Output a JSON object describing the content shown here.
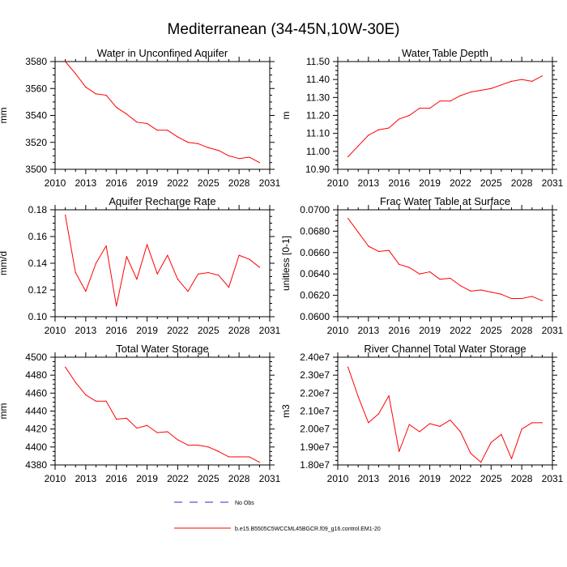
{
  "figure": {
    "title": "Mediterranean (34-45N,10W-30E)"
  },
  "colors": {
    "series": "#ff0000",
    "obs": "#2b2bd8",
    "axis": "#000000"
  },
  "legend": {
    "entries": [
      {
        "label": "No Obs",
        "style": "dashed",
        "color": "#2b2bd8"
      },
      {
        "label": "b.e15.B5505C5WCCML45BGCR.f09_g16.control.EM1-20",
        "style": "solid",
        "color": "#ff0000"
      }
    ]
  },
  "chart_data": [
    {
      "type": "line",
      "title": "Water in Unconfined Aquifer",
      "ylabel": "mm",
      "xlabel": "",
      "xlim": [
        2010,
        2031
      ],
      "ylim": [
        3500,
        3580
      ],
      "xticks": [
        "2010",
        "2013",
        "2016",
        "2019",
        "2022",
        "2025",
        "2028",
        "2031"
      ],
      "yticks": [
        "3500",
        "3520",
        "3540",
        "3560",
        "3580"
      ],
      "x": [
        2011,
        2012,
        2013,
        2014,
        2015,
        2016,
        2017,
        2018,
        2019,
        2020,
        2021,
        2022,
        2023,
        2024,
        2025,
        2026,
        2027,
        2028,
        2029,
        2030
      ],
      "series": [
        {
          "name": "b.e15.B5505C5WCCML45BGCR.f09_g16.control.EM1-20",
          "values": [
            3580,
            3571,
            3561,
            3556,
            3555,
            3546,
            3541,
            3535,
            3534,
            3529,
            3529,
            3524,
            3520,
            3519,
            3516,
            3514,
            3510,
            3508,
            3509,
            3505
          ]
        }
      ]
    },
    {
      "type": "line",
      "title": "Water Table Depth",
      "ylabel": "m",
      "xlabel": "",
      "xlim": [
        2010,
        2031
      ],
      "ylim": [
        10.9,
        11.5
      ],
      "xticks": [
        "2010",
        "2013",
        "2016",
        "2019",
        "2022",
        "2025",
        "2028",
        "2031"
      ],
      "yticks": [
        "10.90",
        "11.00",
        "11.10",
        "11.20",
        "11.30",
        "11.40",
        "11.50"
      ],
      "x": [
        2011,
        2012,
        2013,
        2014,
        2015,
        2016,
        2017,
        2018,
        2019,
        2020,
        2021,
        2022,
        2023,
        2024,
        2025,
        2026,
        2027,
        2028,
        2029,
        2030
      ],
      "series": [
        {
          "name": "b.e15.B5505C5WCCML45BGCR.f09_g16.control.EM1-20",
          "values": [
            10.97,
            11.03,
            11.09,
            11.12,
            11.13,
            11.18,
            11.2,
            11.24,
            11.24,
            11.28,
            11.28,
            11.31,
            11.33,
            11.34,
            11.35,
            11.37,
            11.39,
            11.4,
            11.39,
            11.42
          ]
        }
      ]
    },
    {
      "type": "line",
      "title": "Aquifer Recharge Rate",
      "ylabel": "mm/d",
      "xlabel": "",
      "xlim": [
        2010,
        2031
      ],
      "ylim": [
        0.1,
        0.18
      ],
      "xticks": [
        "2010",
        "2013",
        "2016",
        "2019",
        "2022",
        "2025",
        "2028",
        "2031"
      ],
      "yticks": [
        "0.10",
        "0.12",
        "0.14",
        "0.16",
        "0.18"
      ],
      "x": [
        2011,
        2012,
        2013,
        2014,
        2015,
        2016,
        2017,
        2018,
        2019,
        2020,
        2021,
        2022,
        2023,
        2024,
        2025,
        2026,
        2027,
        2028,
        2029,
        2030
      ],
      "series": [
        {
          "name": "b.e15.B5505C5WCCML45BGCR.f09_g16.control.EM1-20",
          "values": [
            0.176,
            0.133,
            0.119,
            0.14,
            0.153,
            0.108,
            0.145,
            0.128,
            0.154,
            0.132,
            0.146,
            0.128,
            0.119,
            0.132,
            0.133,
            0.131,
            0.122,
            0.146,
            0.143,
            0.137
          ]
        }
      ]
    },
    {
      "type": "line",
      "title": "Frac Water Table at Surface",
      "ylabel": "unitless [0-1]",
      "xlabel": "",
      "xlim": [
        2010,
        2031
      ],
      "ylim": [
        0.06,
        0.07
      ],
      "xticks": [
        "2010",
        "2013",
        "2016",
        "2019",
        "2022",
        "2025",
        "2028",
        "2031"
      ],
      "yticks": [
        "0.0600",
        "0.0620",
        "0.0640",
        "0.0660",
        "0.0680",
        "0.0700"
      ],
      "x": [
        2011,
        2012,
        2013,
        2014,
        2015,
        2016,
        2017,
        2018,
        2019,
        2020,
        2021,
        2022,
        2023,
        2024,
        2025,
        2026,
        2027,
        2028,
        2029,
        2030
      ],
      "series": [
        {
          "name": "b.e15.B5505C5WCCML45BGCR.f09_g16.control.EM1-20",
          "values": [
            0.0692,
            0.0679,
            0.0666,
            0.0661,
            0.0662,
            0.0649,
            0.0646,
            0.064,
            0.0642,
            0.0635,
            0.0636,
            0.0629,
            0.0624,
            0.0625,
            0.0623,
            0.0621,
            0.0617,
            0.0617,
            0.0619,
            0.0615
          ]
        }
      ]
    },
    {
      "type": "line",
      "title": "Total Water Storage",
      "ylabel": "mm",
      "xlabel": "",
      "xlim": [
        2010,
        2031
      ],
      "ylim": [
        4380,
        4500
      ],
      "xticks": [
        "2010",
        "2013",
        "2016",
        "2019",
        "2022",
        "2025",
        "2028",
        "2031"
      ],
      "yticks": [
        "4380",
        "4400",
        "4420",
        "4440",
        "4460",
        "4480",
        "4500"
      ],
      "x": [
        2011,
        2012,
        2013,
        2014,
        2015,
        2016,
        2017,
        2018,
        2019,
        2020,
        2021,
        2022,
        2023,
        2024,
        2025,
        2026,
        2027,
        2028,
        2029,
        2030
      ],
      "series": [
        {
          "name": "b.e15.B5505C5WCCML45BGCR.f09_g16.control.EM1-20",
          "values": [
            4489,
            4472,
            4458,
            4451,
            4451,
            4431,
            4432,
            4421,
            4424,
            4416,
            4417,
            4408,
            4402,
            4402,
            4400,
            4395,
            4389,
            4389,
            4389,
            4383
          ]
        }
      ]
    },
    {
      "type": "line",
      "title": "River Channel Total Water Storage",
      "ylabel": "m3",
      "xlabel": "",
      "xlim": [
        2010,
        2031
      ],
      "ylim": [
        18000000,
        24000000
      ],
      "xticks": [
        "2010",
        "2013",
        "2016",
        "2019",
        "2022",
        "2025",
        "2028",
        "2031"
      ],
      "yticks": [
        "1.80e7",
        "1.90e7",
        "2.00e7",
        "2.10e7",
        "2.20e7",
        "2.30e7",
        "2.40e7"
      ],
      "x": [
        2011,
        2012,
        2013,
        2014,
        2015,
        2016,
        2017,
        2018,
        2019,
        2020,
        2021,
        2022,
        2023,
        2024,
        2025,
        2026,
        2027,
        2028,
        2029,
        2030
      ],
      "series": [
        {
          "name": "b.e15.B5505C5WCCML45BGCR.f09_g16.control.EM1-20",
          "values": [
            23450000,
            21800000,
            20350000,
            20850000,
            21850000,
            18750000,
            20250000,
            19850000,
            20300000,
            20150000,
            20500000,
            19850000,
            18650000,
            18150000,
            19250000,
            19700000,
            18350000,
            20000000,
            20350000,
            20350000
          ]
        }
      ]
    }
  ]
}
